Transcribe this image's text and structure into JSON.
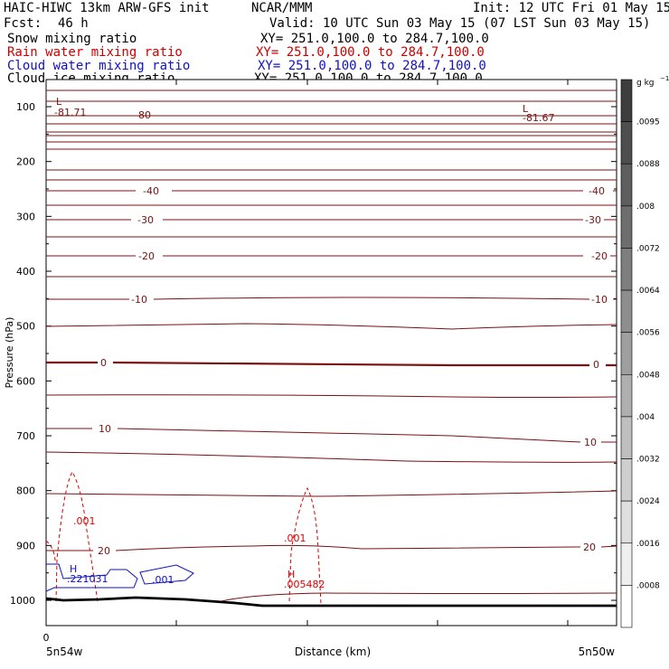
{
  "header": {
    "left1": "HAIC-HIWC 13km ARW-GFS init",
    "mid1": "NCAR/MMM",
    "right1": "Init: 12 UTC Fri 01 May 15",
    "left2": "Fcst:",
    "fcst": "46 h",
    "valid": "Valid: 10 UTC Sun 03 May 15 (07 LST Sun 03 May 15)",
    "fields": [
      {
        "label": "Snow mixing ratio",
        "xy": "XY= 251.0,100.0 to 284.7,100.0",
        "color": "#000000"
      },
      {
        "label": "Rain water mixing ratio",
        "xy": "XY= 251.0,100.0 to 284.7,100.0",
        "color": "#cc0000"
      },
      {
        "label": "Cloud water mixing ratio",
        "xy": "XY= 251.0,100.0 to 284.7,100.0",
        "color": "#1010c8"
      },
      {
        "label": "Cloud ice mixing ratio",
        "xy": "XY= 251.0,100.0 to 284.7,100.0",
        "color": "#000000"
      }
    ]
  },
  "chart_data": {
    "type": "cross-section",
    "ylabel": "Pressure (hPa)",
    "xlabel": "Distance (km)",
    "x_ticks": [
      0
    ],
    "x_end_labels": [
      "5n54w",
      "5n50w"
    ],
    "y_ticks": [
      100,
      200,
      300,
      400,
      500,
      600,
      700,
      800,
      900,
      1000
    ],
    "ylim": [
      1050,
      70
    ],
    "temperature_contours": {
      "units": "°C",
      "labels": [
        {
          "text": "-81.71",
          "note": "L",
          "side": "left"
        },
        {
          "text": "-81.67",
          "note": "L",
          "side": "right"
        },
        {
          "text": "-80",
          "side": "left"
        },
        {
          "text": "-40",
          "side": "both"
        },
        {
          "text": "-30",
          "side": "both"
        },
        {
          "text": "-20",
          "side": "both"
        },
        {
          "text": "-10",
          "side": "both"
        },
        {
          "text": "0",
          "side": "both"
        },
        {
          "text": "10",
          "side": "both"
        },
        {
          "text": "20",
          "side": "both"
        }
      ]
    },
    "rain_water_labels": [
      ".001",
      ".001",
      ".005482"
    ],
    "rain_max_marker": "H",
    "cloud_water_labels": [
      ".221031",
      ".001"
    ],
    "cloud_max_marker": "H",
    "colorbar": {
      "units": "g kg",
      "units_exp": "−1",
      "labels": [
        ".0095",
        ".0088",
        ".008",
        ".0072",
        ".0064",
        ".0056",
        ".0048",
        ".004",
        ".0032",
        ".0024",
        ".0016",
        ".0008"
      ]
    },
    "colors": {
      "temperature": "#7a1010",
      "rain": "#dd0000",
      "cloud_water": "#1010c8",
      "ground": "#000000"
    }
  }
}
